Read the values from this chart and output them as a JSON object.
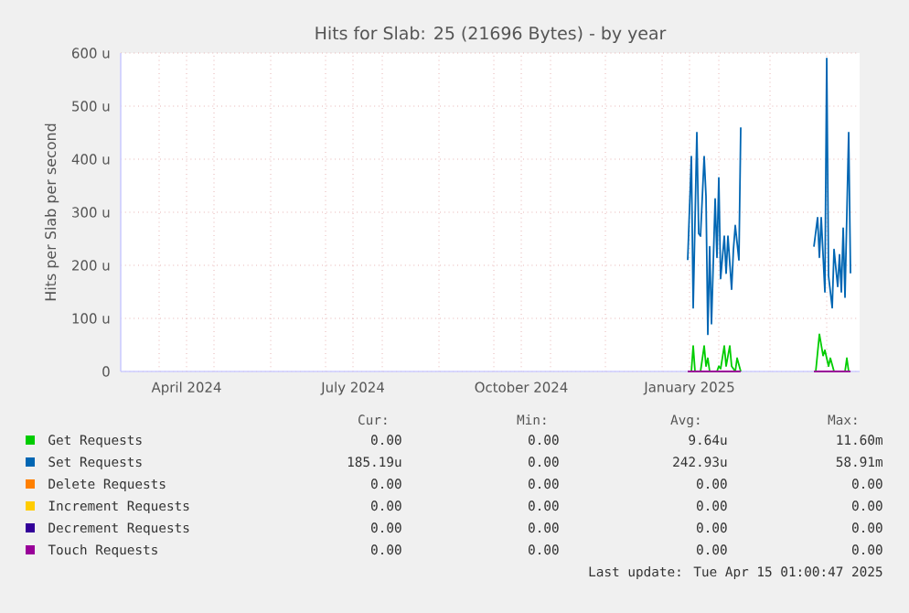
{
  "chart_data": {
    "type": "line",
    "title": "Hits for Slab: 25 (21696 Bytes) - by year",
    "ylabel": "Hits per Slab per second",
    "xlim": [
      "2024-03-11",
      "2025-04-19"
    ],
    "xticks": [
      {
        "value": "2024-04-01",
        "label": null
      },
      {
        "value": "2024-04-16",
        "label": "April 2024"
      },
      {
        "value": "2024-05-01",
        "label": null
      },
      {
        "value": "2024-06-01",
        "label": null
      },
      {
        "value": "2024-07-01",
        "label": null
      },
      {
        "value": "2024-07-16",
        "label": "July 2024"
      },
      {
        "value": "2024-08-01",
        "label": null
      },
      {
        "value": "2024-09-01",
        "label": null
      },
      {
        "value": "2024-10-01",
        "label": null
      },
      {
        "value": "2024-10-16",
        "label": "October 2024"
      },
      {
        "value": "2024-11-01",
        "label": null
      },
      {
        "value": "2024-12-01",
        "label": null
      },
      {
        "value": "2025-01-01",
        "label": null
      },
      {
        "value": "2025-01-16",
        "label": "January 2025"
      },
      {
        "value": "2025-02-01",
        "label": null
      },
      {
        "value": "2025-03-01",
        "label": null
      },
      {
        "value": "2025-04-01",
        "label": null
      }
    ],
    "ylim": [
      0,
      600
    ],
    "yticks": [
      0,
      {
        "value": 100,
        "label": "100 u"
      },
      {
        "value": 200,
        "label": "200 u"
      },
      {
        "value": 300,
        "label": "300 u"
      },
      {
        "value": 400,
        "label": "400 u"
      },
      {
        "value": 500,
        "label": "500 u"
      },
      {
        "value": 600,
        "label": "600 u"
      }
    ],
    "grid": true,
    "legend": "bottom",
    "series": [
      {
        "name": "Get Requests",
        "color": "#00cc00",
        "x": [
          "2025-01-15",
          "2025-01-17",
          "2025-01-18",
          "2025-01-19",
          "2025-01-22",
          "2025-01-24",
          "2025-01-25",
          "2025-01-26",
          "2025-01-27",
          "2025-01-31",
          "2025-02-01",
          "2025-02-02",
          "2025-02-04",
          "2025-02-05",
          "2025-02-07",
          "2025-02-08",
          "2025-02-10",
          "2025-02-11",
          "2025-02-13",
          "2025-03-01",
          "2025-03-26",
          "2025-03-28",
          "2025-03-30",
          "2025-03-31",
          "2025-04-02",
          "2025-04-03",
          "2025-04-05",
          "2025-04-11",
          "2025-04-12",
          "2025-04-13"
        ],
        "values": [
          0,
          0,
          48,
          0,
          0,
          48,
          10,
          25,
          0,
          0,
          10,
          5,
          48,
          10,
          48,
          10,
          0,
          25,
          0,
          null,
          0,
          70,
          30,
          40,
          10,
          25,
          0,
          0,
          25,
          0
        ]
      },
      {
        "name": "Set Requests",
        "color": "#0066b3",
        "x": [
          "2025-01-15",
          "2025-01-17",
          "2025-01-18",
          "2025-01-20",
          "2025-01-21",
          "2025-01-22",
          "2025-01-24",
          "2025-01-25",
          "2025-01-26",
          "2025-01-27",
          "2025-01-28",
          "2025-01-30",
          "2025-01-31",
          "2025-02-01",
          "2025-02-02",
          "2025-02-04",
          "2025-02-05",
          "2025-02-06",
          "2025-02-08",
          "2025-02-09",
          "2025-02-10",
          "2025-02-12",
          "2025-02-13",
          "2025-03-01",
          "2025-03-25",
          "2025-03-27",
          "2025-03-28",
          "2025-03-29",
          "2025-03-31",
          "2025-04-01",
          "2025-04-02",
          "2025-04-04",
          "2025-04-05",
          "2025-04-07",
          "2025-04-08",
          "2025-04-09",
          "2025-04-10",
          "2025-04-11",
          "2025-04-13",
          "2025-04-14"
        ],
        "values": [
          210,
          405,
          120,
          450,
          260,
          255,
          405,
          330,
          70,
          235,
          90,
          325,
          215,
          365,
          175,
          255,
          185,
          255,
          155,
          230,
          275,
          210,
          460,
          null,
          235,
          290,
          215,
          290,
          150,
          590,
          180,
          120,
          230,
          160,
          220,
          150,
          270,
          140,
          450,
          185
        ]
      },
      {
        "name": "Delete Requests",
        "color": "#ff8000"
      },
      {
        "name": "Increment Requests",
        "color": "#ffcc00"
      },
      {
        "name": "Decrement Requests",
        "color": "#330099"
      },
      {
        "name": "Touch Requests",
        "color": "#990099",
        "x": [
          "2025-01-15",
          "2025-02-13",
          "2025-03-01",
          "2025-03-25",
          "2025-04-14"
        ],
        "values": [
          0,
          0,
          null,
          0,
          0
        ]
      }
    ],
    "annotations": [
      "Cur:",
      "Min:",
      "Avg:",
      "Max:",
      "0.00",
      "0.00",
      "9.64u",
      "11.60m",
      "185.19u",
      "0.00",
      "242.93u",
      "58.91m",
      "0.00",
      "0.00",
      "0.00",
      "0.00",
      "0.00",
      "0.00",
      "0.00",
      "0.00",
      "0.00",
      "0.00",
      "0.00",
      "0.00",
      "0.00",
      "0.00",
      "0.00",
      "0.00",
      "Last update: Tue Apr 15 01:00:47 2025"
    ]
  }
}
